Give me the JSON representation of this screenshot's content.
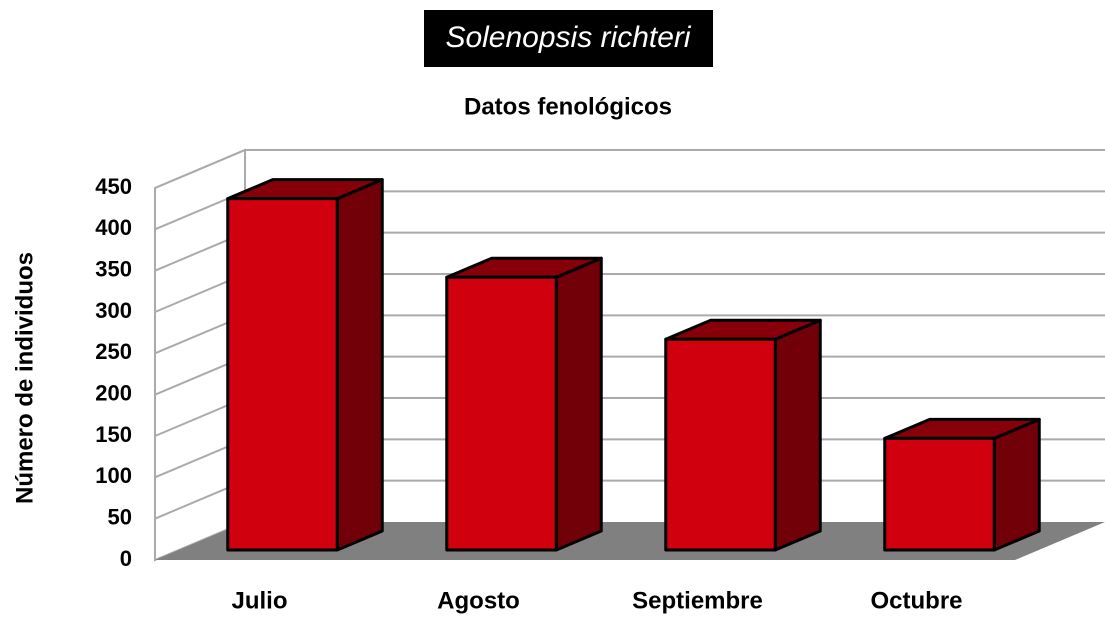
{
  "chart_data": {
    "type": "bar3d",
    "title": "Solenopsis richteri",
    "subtitle": "Datos fenológicos",
    "y_label": "Número de individuos",
    "categories": [
      "Julio",
      "Agosto",
      "Septiembre",
      "Octubre"
    ],
    "values": [
      425,
      330,
      255,
      135
    ],
    "color": "#d0000e",
    "ylim": [
      0,
      450
    ],
    "yticks": [
      0,
      50,
      100,
      150,
      200,
      250,
      300,
      350,
      400,
      450
    ],
    "grid": true
  }
}
